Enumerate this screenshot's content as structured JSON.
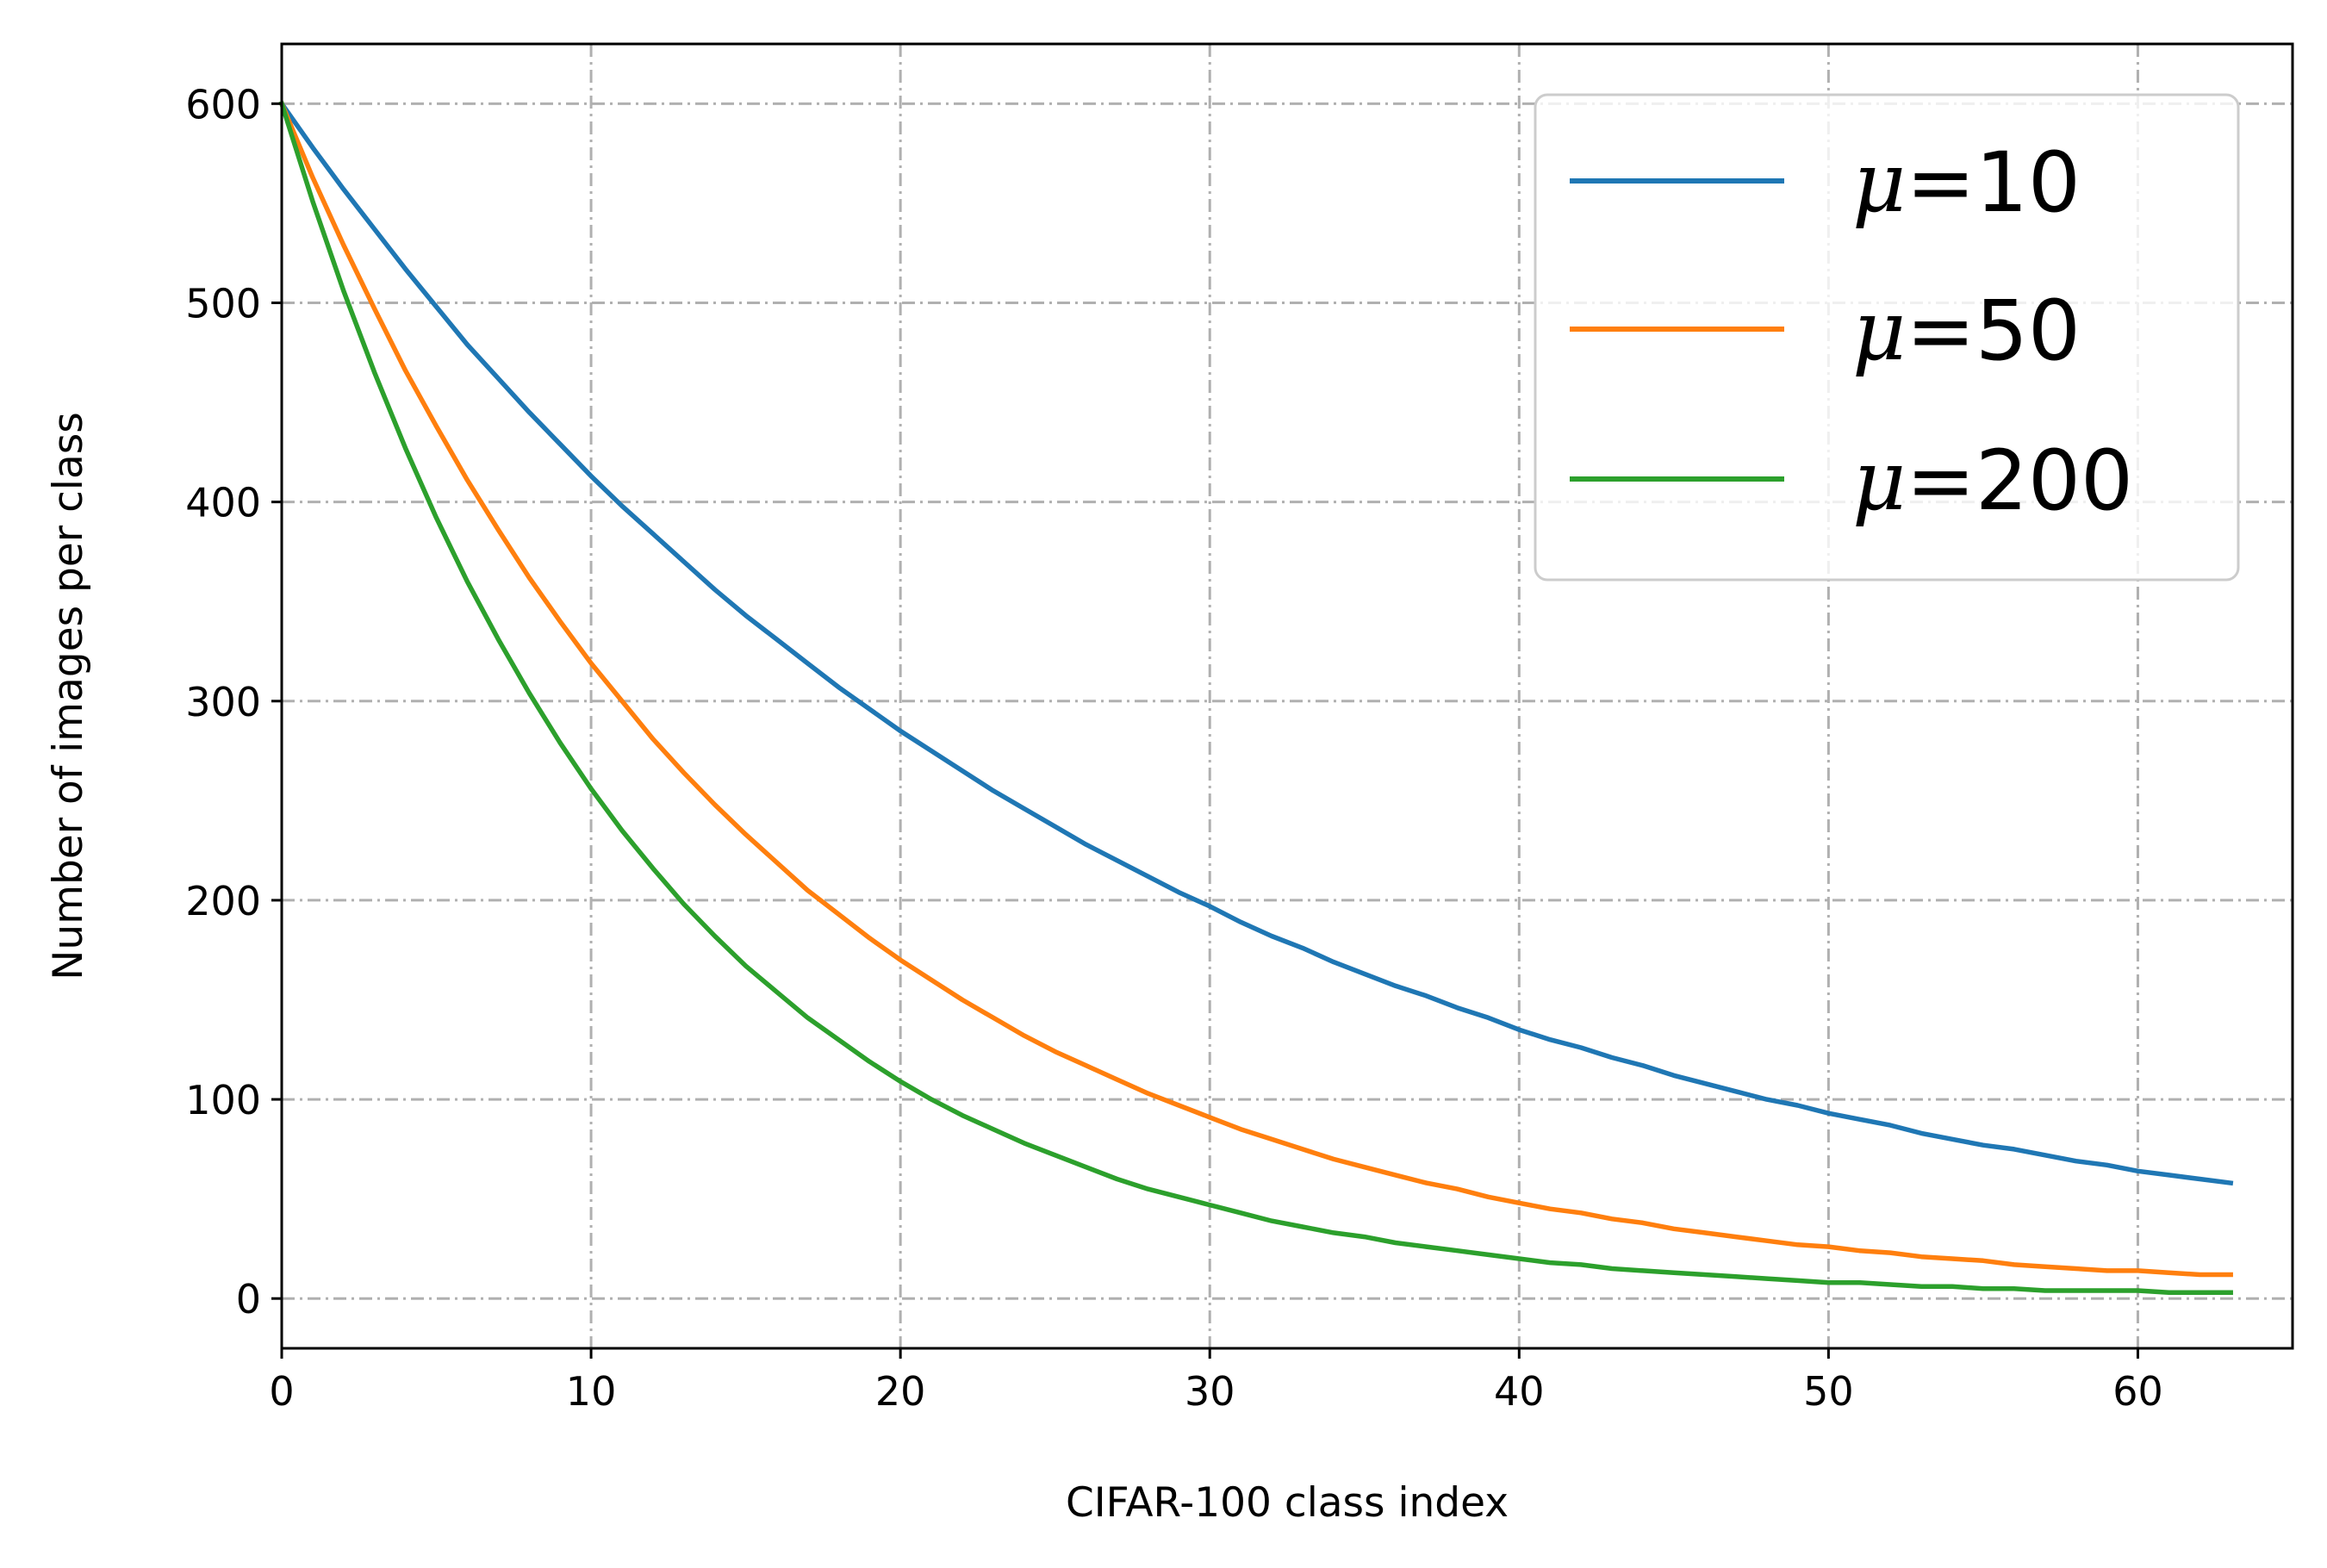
{
  "chart_data": {
    "type": "line",
    "title": "",
    "xlabel": "CIFAR-100 class index",
    "ylabel": "Number of images per class",
    "xlim": [
      0,
      65
    ],
    "ylim": [
      -25,
      630
    ],
    "xticks": [
      0,
      10,
      20,
      30,
      40,
      50,
      60
    ],
    "yticks": [
      0,
      100,
      200,
      300,
      400,
      500,
      600
    ],
    "xtick_labels": [
      "0",
      "10",
      "20",
      "30",
      "40",
      "50",
      "60"
    ],
    "ytick_labels": [
      "0",
      "100",
      "200",
      "300",
      "400",
      "500",
      "600"
    ],
    "grid": true,
    "legend_position": "top-right",
    "series": [
      {
        "name": "μ=10",
        "legend_symbol": "μ",
        "legend_value": "=10",
        "color": "#1f77b4",
        "x": [
          0,
          1,
          2,
          3,
          4,
          5,
          6,
          7,
          8,
          9,
          10,
          11,
          12,
          13,
          14,
          15,
          16,
          17,
          18,
          19,
          20,
          21,
          22,
          23,
          24,
          25,
          26,
          27,
          28,
          29,
          30,
          31,
          32,
          33,
          34,
          35,
          36,
          37,
          38,
          39,
          40,
          41,
          42,
          43,
          44,
          45,
          46,
          47,
          48,
          49,
          50,
          51,
          52,
          53,
          54,
          55,
          56,
          57,
          58,
          59,
          60,
          61,
          62,
          63
        ],
        "values": [
          600,
          578,
          557,
          537,
          517,
          498,
          479,
          462,
          445,
          429,
          413,
          398,
          384,
          370,
          356,
          343,
          331,
          319,
          307,
          296,
          285,
          275,
          265,
          255,
          246,
          237,
          228,
          220,
          212,
          204,
          197,
          189,
          182,
          176,
          169,
          163,
          157,
          152,
          146,
          141,
          135,
          130,
          126,
          121,
          117,
          112,
          108,
          104,
          100,
          97,
          93,
          90,
          87,
          83,
          80,
          77,
          75,
          72,
          69,
          67,
          64,
          62,
          60,
          58
        ]
      },
      {
        "name": "μ=50",
        "legend_symbol": "μ",
        "legend_value": "=50",
        "color": "#ff7f0e",
        "x": [
          0,
          1,
          2,
          3,
          4,
          5,
          6,
          7,
          8,
          9,
          10,
          11,
          12,
          13,
          14,
          15,
          16,
          17,
          18,
          19,
          20,
          21,
          22,
          23,
          24,
          25,
          26,
          27,
          28,
          29,
          30,
          31,
          32,
          33,
          34,
          35,
          36,
          37,
          38,
          39,
          40,
          41,
          42,
          43,
          44,
          45,
          46,
          47,
          48,
          49,
          50,
          51,
          52,
          53,
          54,
          55,
          56,
          57,
          58,
          59,
          60,
          61,
          62,
          63
        ],
        "values": [
          600,
          563,
          529,
          497,
          466,
          438,
          411,
          386,
          362,
          340,
          319,
          300,
          281,
          264,
          248,
          233,
          219,
          205,
          193,
          181,
          170,
          160,
          150,
          141,
          132,
          124,
          117,
          110,
          103,
          97,
          91,
          85,
          80,
          75,
          70,
          66,
          62,
          58,
          55,
          51,
          48,
          45,
          43,
          40,
          38,
          35,
          33,
          31,
          29,
          27,
          26,
          24,
          23,
          21,
          20,
          19,
          17,
          16,
          15,
          14,
          14,
          13,
          12,
          12
        ]
      },
      {
        "name": "μ=200",
        "legend_symbol": "μ",
        "legend_value": "=200",
        "color": "#2ca02c",
        "x": [
          0,
          1,
          2,
          3,
          4,
          5,
          6,
          7,
          8,
          9,
          10,
          11,
          12,
          13,
          14,
          15,
          16,
          17,
          18,
          19,
          20,
          21,
          22,
          23,
          24,
          25,
          26,
          27,
          28,
          29,
          30,
          31,
          32,
          33,
          34,
          35,
          36,
          37,
          38,
          39,
          40,
          41,
          42,
          43,
          44,
          45,
          46,
          47,
          48,
          49,
          50,
          51,
          52,
          53,
          54,
          55,
          56,
          57,
          58,
          59,
          60,
          61,
          62,
          63
        ],
        "values": [
          600,
          551,
          506,
          465,
          427,
          392,
          360,
          331,
          304,
          279,
          256,
          235,
          216,
          198,
          182,
          167,
          154,
          141,
          130,
          119,
          109,
          100,
          92,
          85,
          78,
          72,
          66,
          60,
          55,
          51,
          47,
          43,
          39,
          36,
          33,
          31,
          28,
          26,
          24,
          22,
          20,
          18,
          17,
          15,
          14,
          13,
          12,
          11,
          10,
          9,
          8,
          8,
          7,
          6,
          6,
          5,
          5,
          4,
          4,
          4,
          4,
          3,
          3,
          3
        ]
      }
    ]
  }
}
